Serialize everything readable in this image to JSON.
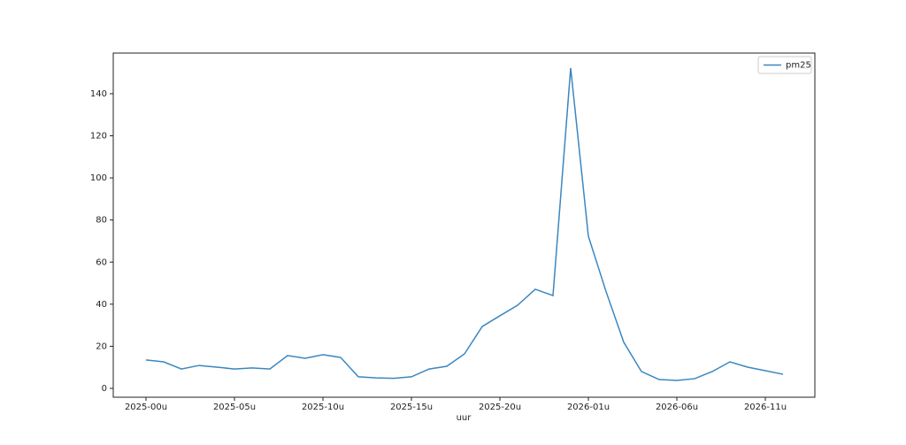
{
  "chart_data": {
    "type": "line",
    "x_label": "uur",
    "categories": [
      "2025-00u",
      null,
      null,
      null,
      null,
      "2025-05u",
      null,
      null,
      null,
      null,
      "2025-10u",
      null,
      null,
      null,
      null,
      "2025-15u",
      null,
      null,
      null,
      null,
      "2025-20u",
      null,
      null,
      null,
      null,
      "2026-01u",
      null,
      null,
      null,
      null,
      "2026-06u",
      null,
      null,
      null,
      null,
      "2026-11u",
      null
    ],
    "series": [
      {
        "name": "pm25",
        "color": "#3a87c0",
        "values": [
          13.5,
          12.6,
          9.2,
          10.9,
          10.1,
          9.2,
          9.7,
          9.2,
          15.6,
          14.3,
          16.0,
          14.7,
          5.5,
          5.0,
          4.8,
          5.5,
          9.2,
          10.5,
          16.4,
          29.4,
          34.5,
          39.5,
          47.1,
          44.1,
          152.2,
          72.3,
          46.0,
          21.9,
          8.0,
          4.2,
          3.8,
          4.6,
          8.0,
          12.6,
          10.1,
          8.4,
          6.7
        ]
      }
    ],
    "ylim": [
      -4.2,
      159.3
    ],
    "yticks": [
      0,
      20,
      40,
      60,
      80,
      100,
      120,
      140
    ],
    "legend": "upper right",
    "grid": false
  }
}
